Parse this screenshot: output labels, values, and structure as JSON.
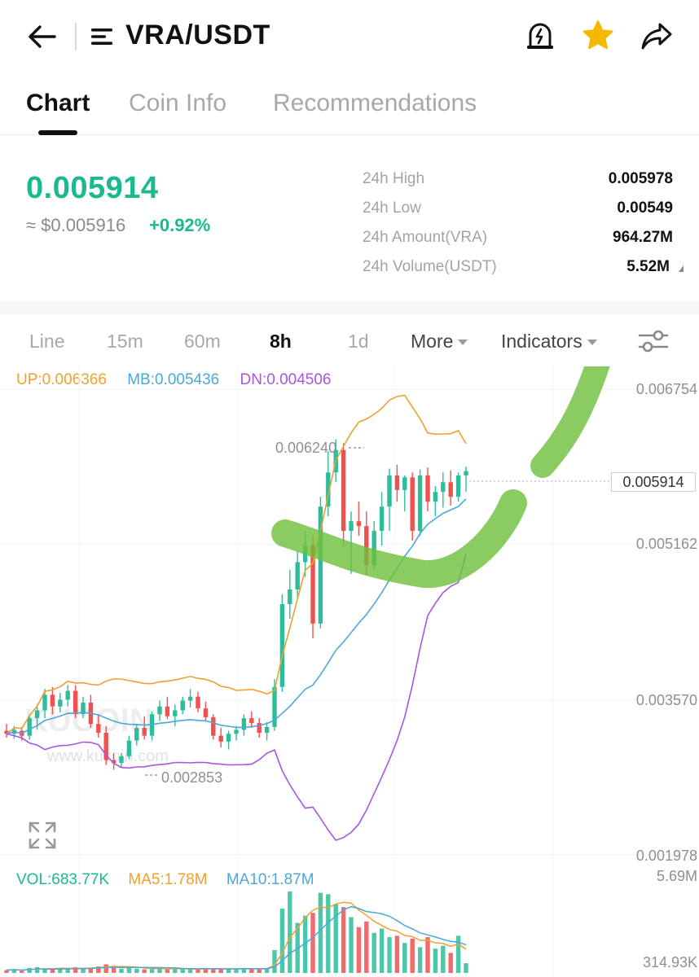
{
  "header": {
    "pair": "VRA/USDT",
    "icons": {
      "back": "back-arrow-icon",
      "menu": "menu-icon",
      "alert": "price-alert-icon",
      "favorite": "star-icon",
      "share": "share-icon"
    },
    "favorite_color": "#f5b800"
  },
  "tabs": [
    {
      "label": "Chart",
      "active": true
    },
    {
      "label": "Coin Info",
      "active": false
    },
    {
      "label": "Recommendations",
      "active": false
    }
  ],
  "ticker": {
    "last_price": "0.005914",
    "usd_price": "≈ $0.005916",
    "change": "+0.92%",
    "stats": [
      {
        "label": "24h High",
        "value": "0.005978"
      },
      {
        "label": "24h Low",
        "value": "0.00549"
      },
      {
        "label": "24h Amount(VRA)",
        "value": "964.27M"
      },
      {
        "label": "24h Volume(USDT)",
        "value": "5.52M"
      }
    ]
  },
  "intervals": {
    "items": [
      "Line",
      "15m",
      "60m",
      "8h",
      "1d"
    ],
    "active": "8h",
    "more_label": "More",
    "indicators_label": "Indicators",
    "settings_icon": "sliders-icon"
  },
  "boll_legend": {
    "up": "UP:0.006366",
    "mb": "MB:0.005436",
    "dn": "DN:0.004506"
  },
  "vol_legend": {
    "vol": "VOL:683.77K",
    "ma5": "MA5:1.78M",
    "ma10": "MA10:1.87M"
  },
  "price_axis": [
    "0.006754",
    "0.005162",
    "0.003570",
    "0.001978"
  ],
  "volume_axis": [
    "5.69M",
    "314.93K"
  ],
  "current_price_tag": "0.005914",
  "annotations": {
    "high": "0.006240",
    "low": "0.002853"
  },
  "watermark": {
    "logo": "KUCOIN",
    "url": "www.kucoin.com"
  },
  "colors": {
    "up": "#2ebd9b",
    "down": "#f0504f",
    "accent_green": "#1bb98e",
    "boll_up": "#f0a030",
    "boll_mid": "#4ba8d8",
    "boll_dn": "#a855e0",
    "drawing": "#6dbf3a"
  },
  "chart_data": {
    "type": "candlestick",
    "interval": "8h",
    "y_range": [
      0.001978,
      0.006754
    ],
    "candles": [
      {
        "o": 0.00325,
        "h": 0.00332,
        "l": 0.00318,
        "c": 0.00322
      },
      {
        "o": 0.00322,
        "h": 0.0033,
        "l": 0.00317,
        "c": 0.00326
      },
      {
        "o": 0.00325,
        "h": 0.00329,
        "l": 0.00315,
        "c": 0.0032
      },
      {
        "o": 0.0032,
        "h": 0.00342,
        "l": 0.00316,
        "c": 0.00338
      },
      {
        "o": 0.00338,
        "h": 0.00352,
        "l": 0.00326,
        "c": 0.00346
      },
      {
        "o": 0.00346,
        "h": 0.00368,
        "l": 0.00338,
        "c": 0.00362
      },
      {
        "o": 0.00362,
        "h": 0.0037,
        "l": 0.00342,
        "c": 0.0035
      },
      {
        "o": 0.0035,
        "h": 0.00364,
        "l": 0.00344,
        "c": 0.00357
      },
      {
        "o": 0.00357,
        "h": 0.00372,
        "l": 0.0035,
        "c": 0.00366
      },
      {
        "o": 0.00366,
        "h": 0.00372,
        "l": 0.00338,
        "c": 0.00342
      },
      {
        "o": 0.00342,
        "h": 0.0036,
        "l": 0.00338,
        "c": 0.00354
      },
      {
        "o": 0.00354,
        "h": 0.00362,
        "l": 0.00328,
        "c": 0.00332
      },
      {
        "o": 0.00332,
        "h": 0.00342,
        "l": 0.00318,
        "c": 0.00323
      },
      {
        "o": 0.00323,
        "h": 0.0033,
        "l": 0.0029,
        "c": 0.00295
      },
      {
        "o": 0.00295,
        "h": 0.00302,
        "l": 0.002853,
        "c": 0.00292
      },
      {
        "o": 0.00292,
        "h": 0.00302,
        "l": 0.00288,
        "c": 0.00299
      },
      {
        "o": 0.00299,
        "h": 0.0032,
        "l": 0.00296,
        "c": 0.00315
      },
      {
        "o": 0.00315,
        "h": 0.00332,
        "l": 0.0031,
        "c": 0.00328
      },
      {
        "o": 0.00328,
        "h": 0.0034,
        "l": 0.00316,
        "c": 0.0032
      },
      {
        "o": 0.0032,
        "h": 0.00345,
        "l": 0.00315,
        "c": 0.00342
      },
      {
        "o": 0.00342,
        "h": 0.00356,
        "l": 0.00335,
        "c": 0.0035
      },
      {
        "o": 0.0035,
        "h": 0.0036,
        "l": 0.00337,
        "c": 0.0034
      },
      {
        "o": 0.0034,
        "h": 0.00352,
        "l": 0.0033,
        "c": 0.00346
      },
      {
        "o": 0.00346,
        "h": 0.0036,
        "l": 0.00342,
        "c": 0.00356
      },
      {
        "o": 0.00356,
        "h": 0.00368,
        "l": 0.00349,
        "c": 0.0036
      },
      {
        "o": 0.0036,
        "h": 0.00365,
        "l": 0.00344,
        "c": 0.00348
      },
      {
        "o": 0.00348,
        "h": 0.00355,
        "l": 0.00335,
        "c": 0.00339
      },
      {
        "o": 0.00339,
        "h": 0.00342,
        "l": 0.00316,
        "c": 0.0032
      },
      {
        "o": 0.0032,
        "h": 0.00328,
        "l": 0.00308,
        "c": 0.00314
      },
      {
        "o": 0.00314,
        "h": 0.00325,
        "l": 0.00306,
        "c": 0.00322
      },
      {
        "o": 0.00322,
        "h": 0.0033,
        "l": 0.00315,
        "c": 0.00326
      },
      {
        "o": 0.00326,
        "h": 0.00342,
        "l": 0.0032,
        "c": 0.00338
      },
      {
        "o": 0.00338,
        "h": 0.00345,
        "l": 0.00328,
        "c": 0.00333
      },
      {
        "o": 0.00333,
        "h": 0.00338,
        "l": 0.00318,
        "c": 0.00323
      },
      {
        "o": 0.00323,
        "h": 0.00334,
        "l": 0.00315,
        "c": 0.00329
      },
      {
        "o": 0.00329,
        "h": 0.00378,
        "l": 0.00325,
        "c": 0.0037
      },
      {
        "o": 0.0037,
        "h": 0.00465,
        "l": 0.00365,
        "c": 0.00455
      },
      {
        "o": 0.00455,
        "h": 0.0049,
        "l": 0.0044,
        "c": 0.0047
      },
      {
        "o": 0.0047,
        "h": 0.0051,
        "l": 0.0046,
        "c": 0.00498
      },
      {
        "o": 0.00498,
        "h": 0.0053,
        "l": 0.00483,
        "c": 0.00515
      },
      {
        "o": 0.00515,
        "h": 0.00525,
        "l": 0.0042,
        "c": 0.00435
      },
      {
        "o": 0.00435,
        "h": 0.00565,
        "l": 0.0043,
        "c": 0.00555
      },
      {
        "o": 0.00555,
        "h": 0.00612,
        "l": 0.00545,
        "c": 0.0059
      },
      {
        "o": 0.0059,
        "h": 0.00624,
        "l": 0.0058,
        "c": 0.00613
      },
      {
        "o": 0.00613,
        "h": 0.0062,
        "l": 0.00515,
        "c": 0.0053
      },
      {
        "o": 0.0053,
        "h": 0.0055,
        "l": 0.00486,
        "c": 0.0054
      },
      {
        "o": 0.0054,
        "h": 0.0056,
        "l": 0.00525,
        "c": 0.00535
      },
      {
        "o": 0.00535,
        "h": 0.0055,
        "l": 0.00485,
        "c": 0.00495
      },
      {
        "o": 0.00495,
        "h": 0.0054,
        "l": 0.0049,
        "c": 0.0053
      },
      {
        "o": 0.0053,
        "h": 0.0057,
        "l": 0.00515,
        "c": 0.00555
      },
      {
        "o": 0.00555,
        "h": 0.00594,
        "l": 0.0053,
        "c": 0.00587
      },
      {
        "o": 0.00587,
        "h": 0.00598,
        "l": 0.0056,
        "c": 0.00572
      },
      {
        "o": 0.00572,
        "h": 0.00587,
        "l": 0.0055,
        "c": 0.00585
      },
      {
        "o": 0.00585,
        "h": 0.0059,
        "l": 0.0052,
        "c": 0.0053
      },
      {
        "o": 0.0053,
        "h": 0.00593,
        "l": 0.00525,
        "c": 0.00587
      },
      {
        "o": 0.00587,
        "h": 0.00595,
        "l": 0.0055,
        "c": 0.0056
      },
      {
        "o": 0.0056,
        "h": 0.00576,
        "l": 0.00545,
        "c": 0.0057
      },
      {
        "o": 0.0057,
        "h": 0.0059,
        "l": 0.00554,
        "c": 0.0058
      },
      {
        "o": 0.0058,
        "h": 0.00592,
        "l": 0.00556,
        "c": 0.00565
      },
      {
        "o": 0.00565,
        "h": 0.0059,
        "l": 0.0056,
        "c": 0.00587
      },
      {
        "o": 0.00587,
        "h": 0.00596,
        "l": 0.0057,
        "c": 0.005914
      }
    ],
    "volumes_m": [
      0.2,
      0.25,
      0.15,
      0.35,
      0.4,
      0.3,
      0.25,
      0.35,
      0.3,
      0.4,
      0.3,
      0.35,
      0.45,
      0.6,
      0.5,
      0.3,
      0.35,
      0.3,
      0.25,
      0.35,
      0.3,
      0.25,
      0.3,
      0.25,
      0.3,
      0.25,
      0.35,
      0.3,
      0.25,
      0.3,
      0.25,
      0.35,
      0.3,
      0.25,
      0.3,
      1.6,
      4.5,
      5.69,
      3.5,
      4.0,
      4.2,
      5.6,
      5.5,
      4.8,
      4.6,
      3.9,
      3.2,
      3.6,
      2.8,
      3.1,
      2.5,
      2.6,
      2.1,
      2.4,
      1.8,
      2.5,
      1.7,
      1.9,
      1.4,
      2.6,
      0.68
    ],
    "volume_range": [
      0,
      5.69
    ]
  }
}
